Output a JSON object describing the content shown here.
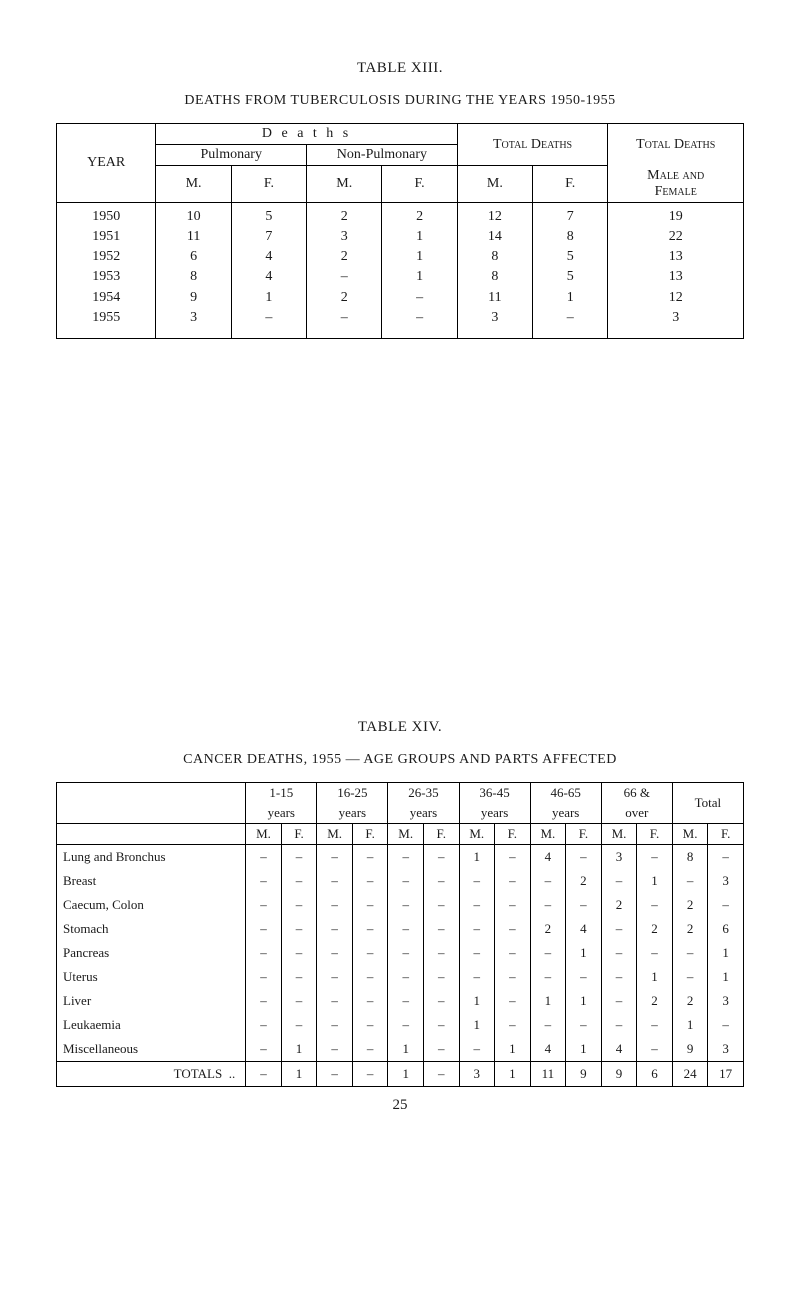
{
  "table13": {
    "title": "TABLE XIII.",
    "subtitle": "DEATHS FROM TUBERCULOSIS DURING THE YEARS 1950-1955",
    "headers": {
      "year": "YEAR",
      "deaths": "D e a t h s",
      "pulmonary": "Pulmonary",
      "non_pulmonary": "Non-Pulmonary",
      "total_deaths": "Total Deaths",
      "m": "M.",
      "f": "F.",
      "male_and": "Male and",
      "female": "Female"
    },
    "rows": [
      {
        "year": "1950",
        "pm": "10",
        "pf": "5",
        "nm": "2",
        "nf": "2",
        "tm": "12",
        "tf": "7",
        "mf": "19"
      },
      {
        "year": "1951",
        "pm": "11",
        "pf": "7",
        "nm": "3",
        "nf": "1",
        "tm": "14",
        "tf": "8",
        "mf": "22"
      },
      {
        "year": "1952",
        "pm": "6",
        "pf": "4",
        "nm": "2",
        "nf": "1",
        "tm": "8",
        "tf": "5",
        "mf": "13"
      },
      {
        "year": "1953",
        "pm": "8",
        "pf": "4",
        "nm": "–",
        "nf": "1",
        "tm": "8",
        "tf": "5",
        "mf": "13"
      },
      {
        "year": "1954",
        "pm": "9",
        "pf": "1",
        "nm": "2",
        "nf": "–",
        "tm": "11",
        "tf": "1",
        "mf": "12"
      },
      {
        "year": "1955",
        "pm": "3",
        "pf": "–",
        "nm": "–",
        "nf": "–",
        "tm": "3",
        "tf": "–",
        "mf": "3"
      }
    ]
  },
  "table14": {
    "title": "TABLE XIV.",
    "subtitle": "CANCER DEATHS, 1955 — AGE GROUPS AND PARTS AFFECTED",
    "age_groups": [
      "1-15",
      "16-25",
      "26-35",
      "36-45",
      "46-65",
      "66 &"
    ],
    "age_sub": [
      "years",
      "years",
      "years",
      "years",
      "years",
      "over"
    ],
    "total_label": "Total",
    "mf_labels": {
      "m": "M.",
      "f": "F."
    },
    "causes": [
      {
        "name": "Lung and Bronchus",
        "d": [
          "–",
          "–",
          "–",
          "–",
          "–",
          "–",
          "1",
          "–",
          "4",
          "–",
          "3",
          "–",
          "8",
          "–"
        ]
      },
      {
        "name": "Breast",
        "d": [
          "–",
          "–",
          "–",
          "–",
          "–",
          "–",
          "–",
          "–",
          "–",
          "2",
          "–",
          "1",
          "–",
          "3"
        ]
      },
      {
        "name": "Caecum, Colon",
        "d": [
          "–",
          "–",
          "–",
          "–",
          "–",
          "–",
          "–",
          "–",
          "–",
          "–",
          "2",
          "–",
          "2",
          "–"
        ]
      },
      {
        "name": "Stomach",
        "d": [
          "–",
          "–",
          "–",
          "–",
          "–",
          "–",
          "–",
          "–",
          "2",
          "4",
          "–",
          "2",
          "2",
          "6"
        ]
      },
      {
        "name": "Pancreas",
        "d": [
          "–",
          "–",
          "–",
          "–",
          "–",
          "–",
          "–",
          "–",
          "–",
          "1",
          "–",
          "–",
          "–",
          "1"
        ]
      },
      {
        "name": "Uterus",
        "d": [
          "–",
          "–",
          "–",
          "–",
          "–",
          "–",
          "–",
          "–",
          "–",
          "–",
          "–",
          "1",
          "–",
          "1"
        ]
      },
      {
        "name": "Liver",
        "d": [
          "–",
          "–",
          "–",
          "–",
          "–",
          "–",
          "1",
          "–",
          "1",
          "1",
          "–",
          "2",
          "2",
          "3"
        ]
      },
      {
        "name": "Leukaemia",
        "d": [
          "–",
          "–",
          "–",
          "–",
          "–",
          "–",
          "1",
          "–",
          "–",
          "–",
          "–",
          "–",
          "1",
          "–"
        ]
      },
      {
        "name": "Miscellaneous",
        "d": [
          "–",
          "1",
          "–",
          "–",
          "1",
          "–",
          "–",
          "1",
          "4",
          "1",
          "4",
          "–",
          "9",
          "3"
        ]
      }
    ],
    "totals_label": "TOTALS",
    "totals": [
      "–",
      "1",
      "–",
      "–",
      "1",
      "–",
      "3",
      "1",
      "11",
      "9",
      "9",
      "6",
      "24",
      "17"
    ]
  },
  "page_number": "25"
}
